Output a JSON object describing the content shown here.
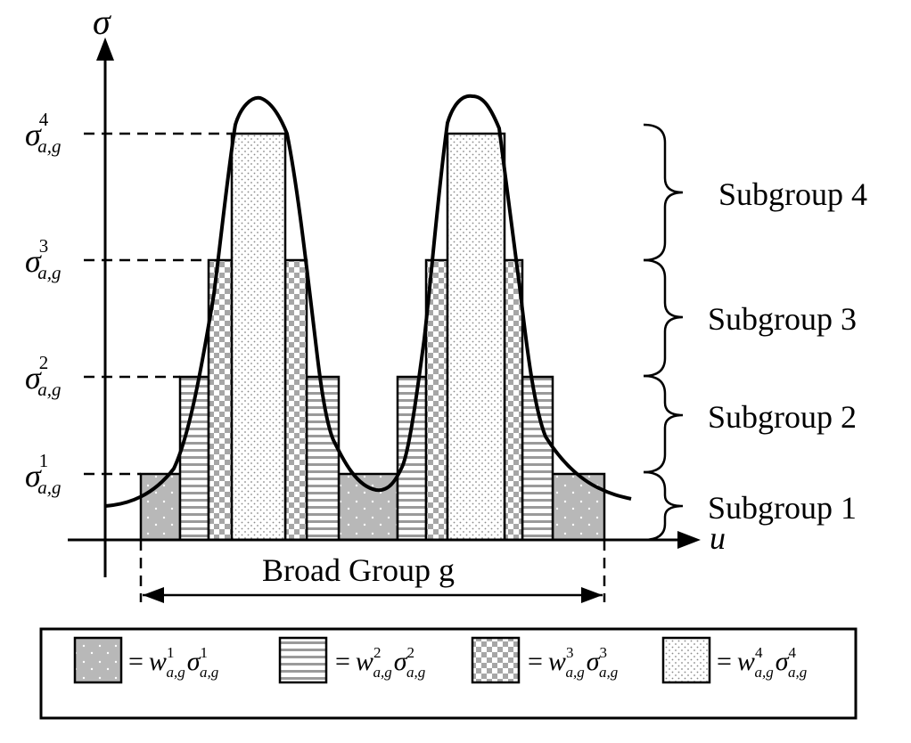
{
  "axes": {
    "y_symbol": "σ",
    "x_symbol": "u"
  },
  "levels": [
    {
      "base": "σ",
      "sub": "a,g",
      "sup": "1"
    },
    {
      "base": "σ",
      "sub": "a,g",
      "sup": "2"
    },
    {
      "base": "σ",
      "sub": "a,g",
      "sup": "3"
    },
    {
      "base": "σ",
      "sub": "a,g",
      "sup": "4"
    }
  ],
  "subgroups": [
    "Subgroup 4",
    "Subgroup 3",
    "Subgroup 2",
    "Subgroup 1"
  ],
  "broad_group_label": "Broad Group g",
  "legend": [
    {
      "eq": "=",
      "w": "w",
      "sup": "1",
      "sub": "a,g",
      "sigma": "σ",
      "ssup": "1",
      "ssub": "a,g",
      "pattern": "dotted-gray"
    },
    {
      "eq": "=",
      "w": "w",
      "sup": "2",
      "sub": "a,g",
      "sigma": "σ",
      "ssup": "2",
      "ssub": "a,g",
      "pattern": "horizontal-stripes"
    },
    {
      "eq": "=",
      "w": "w",
      "sup": "3",
      "sub": "a,g",
      "sigma": "σ",
      "ssup": "3",
      "ssub": "a,g",
      "pattern": "checkerboard"
    },
    {
      "eq": "=",
      "w": "w",
      "sup": "4",
      "sub": "a,g",
      "sigma": "σ",
      "ssup": "4",
      "ssub": "a,g",
      "pattern": "fine-dots"
    }
  ]
}
